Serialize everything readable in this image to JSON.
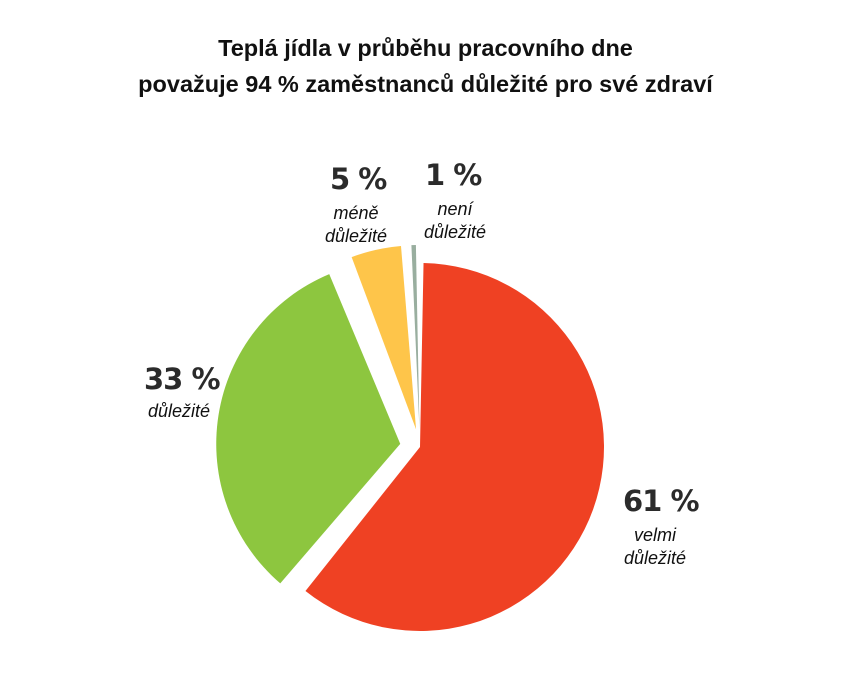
{
  "title": {
    "line1": "Teplá jídla v průběhu pracovního dne",
    "line2": "považuje 94 % zaměstnanců důležité pro své zdraví"
  },
  "chart_data": {
    "type": "pie",
    "title": "Teplá jídla v průběhu pracovního dne považuje 94 % zaměstnanců důležité pro své zdraví",
    "slices": [
      {
        "label": "velmi důležité",
        "value": 61,
        "value_label": "61 %",
        "label_line1": "velmi",
        "label_line2": "důležité",
        "color": "#ef4123",
        "exploded": false
      },
      {
        "label": "důležité",
        "value": 33,
        "value_label": "33 %",
        "label_line1": "důležité",
        "label_line2": "",
        "color": "#8dc63f",
        "exploded": true
      },
      {
        "label": "méně důležité",
        "value": 5,
        "value_label": "5 %",
        "label_line1": "méně",
        "label_line2": "důležité",
        "color": "#fec54a",
        "exploded": true
      },
      {
        "label": "není důležité",
        "value": 1,
        "value_label": "1 %",
        "label_line1": "není",
        "label_line2": "důležité",
        "color": "#99ae9f",
        "exploded": true
      }
    ],
    "start_angle_deg": 0,
    "direction": "clockwise"
  }
}
